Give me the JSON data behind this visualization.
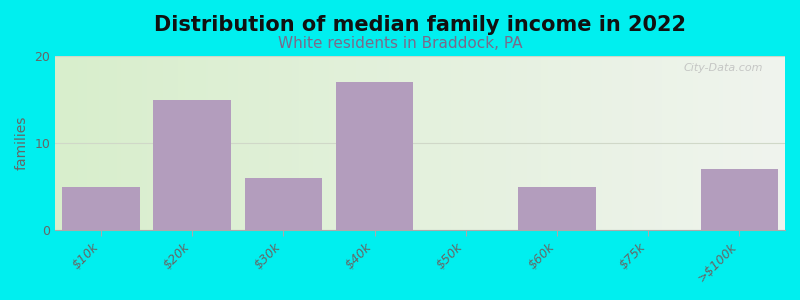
{
  "title": "Distribution of median family income in 2022",
  "subtitle": "White residents in Braddock, PA",
  "categories": [
    "$10k",
    "$20k",
    "$30k",
    "$40k",
    "$50k",
    "$60k",
    "$75k",
    ">$100k"
  ],
  "values": [
    5,
    15,
    6,
    17,
    0,
    5,
    0,
    7
  ],
  "bar_color": "#b39dbd",
  "background_outer": "#00efef",
  "background_inner_left": "#d8eecc",
  "background_inner_right": "#f0f4ee",
  "title_fontsize": 15,
  "subtitle_fontsize": 11,
  "subtitle_color": "#7a6a8a",
  "ylabel": "families",
  "ylim": [
    0,
    20
  ],
  "yticks": [
    0,
    10,
    20
  ],
  "watermark": "City-Data.com",
  "grid_color": "#d0d8c8",
  "axis_color": "#aaaaaa"
}
